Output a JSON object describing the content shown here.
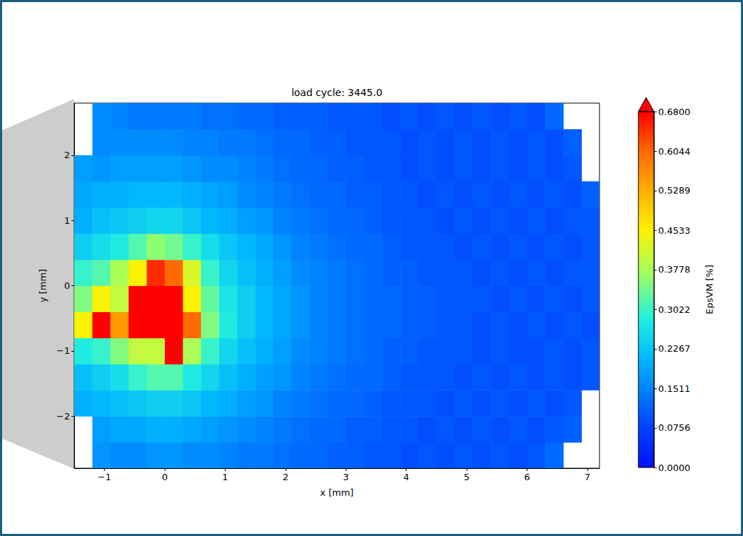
{
  "chart_data": {
    "type": "heatmap",
    "title": "load cycle: 3445.0",
    "x_label": "x [mm]",
    "y_label": "y [mm]",
    "xlim": [
      -1.5,
      7.2
    ],
    "ylim": [
      -2.8,
      2.8
    ],
    "xticks": [
      {
        "value": -1,
        "label": "−1"
      },
      0,
      1,
      2,
      3,
      4,
      5,
      6,
      7
    ],
    "yticks": [
      {
        "value": -2,
        "label": "−2"
      },
      {
        "value": -1,
        "label": "−1"
      },
      0,
      1,
      2
    ],
    "x": [
      -1.35,
      -1.05,
      -0.75,
      -0.45,
      -0.15,
      0.15,
      0.45,
      0.75,
      1.05,
      1.35,
      1.65,
      1.95,
      2.25,
      2.55,
      2.85,
      3.15,
      3.45,
      3.75,
      4.05,
      4.35,
      4.65,
      4.95,
      5.25,
      5.55,
      5.85,
      6.15,
      6.45,
      6.75,
      7.05
    ],
    "y": [
      -2.6,
      -2.2,
      -1.8,
      -1.4,
      -1.0,
      -0.6,
      -0.2,
      0.2,
      0.6,
      1.0,
      1.4,
      1.8,
      2.2,
      2.6
    ],
    "cells": [
      [
        null,
        0.17,
        0.16,
        0.16,
        0.17,
        0.17,
        0.16,
        0.16,
        0.15,
        0.14,
        0.14,
        0.13,
        0.12,
        0.12,
        0.11,
        0.11,
        0.1,
        0.1,
        0.09,
        0.1,
        0.09,
        0.1,
        0.09,
        0.1,
        0.09,
        0.1,
        0.12,
        null,
        null
      ],
      [
        null,
        0.18,
        0.19,
        0.19,
        0.2,
        0.2,
        0.19,
        0.18,
        0.17,
        0.16,
        0.15,
        0.14,
        0.13,
        0.12,
        0.12,
        0.11,
        0.11,
        0.1,
        0.1,
        0.09,
        0.1,
        0.09,
        0.1,
        0.09,
        0.1,
        0.09,
        0.1,
        0.11,
        null
      ],
      [
        0.2,
        0.21,
        0.22,
        0.23,
        0.24,
        0.24,
        0.23,
        0.21,
        0.2,
        0.18,
        0.17,
        0.15,
        0.14,
        0.13,
        0.12,
        0.12,
        0.11,
        0.1,
        0.1,
        0.1,
        0.09,
        0.1,
        0.09,
        0.1,
        0.09,
        0.1,
        0.09,
        0.1,
        null
      ],
      [
        0.22,
        0.24,
        0.26,
        0.3,
        0.32,
        0.32,
        0.28,
        0.25,
        0.22,
        0.2,
        0.18,
        0.17,
        0.15,
        0.14,
        0.13,
        0.12,
        0.12,
        0.11,
        0.1,
        0.1,
        0.1,
        0.09,
        0.1,
        0.09,
        0.1,
        0.09,
        0.1,
        0.09,
        0.1
      ],
      [
        0.28,
        0.3,
        0.35,
        0.4,
        0.4,
        0.8,
        0.38,
        0.3,
        0.25,
        0.22,
        0.2,
        0.18,
        0.16,
        0.15,
        0.14,
        0.13,
        0.12,
        0.11,
        0.11,
        0.1,
        0.1,
        0.1,
        0.09,
        0.1,
        0.09,
        0.09,
        0.1,
        0.09,
        0.1
      ],
      [
        0.45,
        0.75,
        0.55,
        0.85,
        0.9,
        0.85,
        0.6,
        0.35,
        0.28,
        0.24,
        0.21,
        0.19,
        0.17,
        0.15,
        0.14,
        0.13,
        0.12,
        0.12,
        0.11,
        0.11,
        0.1,
        0.1,
        0.09,
        0.1,
        0.09,
        0.1,
        0.09,
        0.1,
        0.09
      ],
      [
        0.35,
        0.45,
        0.4,
        0.75,
        0.9,
        0.8,
        0.45,
        0.33,
        0.27,
        0.24,
        0.21,
        0.19,
        0.17,
        0.15,
        0.14,
        0.13,
        0.12,
        0.12,
        0.11,
        0.11,
        0.1,
        0.1,
        0.1,
        0.09,
        0.1,
        0.09,
        0.1,
        0.09,
        0.1
      ],
      [
        0.3,
        0.32,
        0.38,
        0.45,
        0.65,
        0.6,
        0.42,
        0.3,
        0.25,
        0.22,
        0.2,
        0.18,
        0.16,
        0.15,
        0.14,
        0.13,
        0.12,
        0.11,
        0.11,
        0.1,
        0.1,
        0.1,
        0.09,
        0.1,
        0.09,
        0.1,
        0.09,
        0.1,
        0.1
      ],
      [
        0.24,
        0.26,
        0.28,
        0.32,
        0.36,
        0.34,
        0.3,
        0.26,
        0.23,
        0.21,
        0.19,
        0.17,
        0.15,
        0.14,
        0.13,
        0.12,
        0.12,
        0.11,
        0.1,
        0.1,
        0.1,
        0.09,
        0.1,
        0.09,
        0.1,
        0.09,
        0.1,
        0.09,
        0.1
      ],
      [
        0.2,
        0.22,
        0.23,
        0.24,
        0.25,
        0.25,
        0.23,
        0.21,
        0.2,
        0.18,
        0.17,
        0.15,
        0.14,
        0.13,
        0.12,
        0.12,
        0.11,
        0.1,
        0.1,
        0.1,
        0.09,
        0.1,
        0.09,
        0.1,
        0.09,
        0.1,
        0.09,
        0.1,
        0.1
      ],
      [
        0.19,
        0.2,
        0.2,
        0.21,
        0.21,
        0.21,
        0.2,
        0.19,
        0.18,
        0.16,
        0.15,
        0.14,
        0.13,
        0.12,
        0.12,
        0.11,
        0.11,
        0.1,
        0.1,
        0.09,
        0.1,
        0.09,
        0.1,
        0.09,
        0.1,
        0.09,
        0.1,
        0.09,
        0.11
      ],
      [
        0.18,
        0.17,
        0.18,
        0.18,
        0.18,
        0.18,
        0.17,
        0.16,
        0.16,
        0.15,
        0.14,
        0.13,
        0.12,
        0.12,
        0.11,
        0.11,
        0.1,
        0.1,
        0.09,
        0.1,
        0.09,
        0.1,
        0.09,
        0.1,
        0.09,
        0.1,
        0.09,
        0.1,
        null
      ],
      [
        null,
        0.16,
        0.16,
        0.16,
        0.16,
        0.16,
        0.15,
        0.15,
        0.14,
        0.14,
        0.13,
        0.12,
        0.12,
        0.11,
        0.11,
        0.1,
        0.1,
        0.1,
        0.09,
        0.1,
        0.09,
        0.1,
        0.09,
        0.1,
        0.09,
        0.1,
        0.09,
        0.11,
        null
      ],
      [
        null,
        0.16,
        0.15,
        0.14,
        0.14,
        0.14,
        0.14,
        0.13,
        0.13,
        0.12,
        0.12,
        0.11,
        0.11,
        0.11,
        0.1,
        0.1,
        0.1,
        0.09,
        0.1,
        0.09,
        0.1,
        0.09,
        0.1,
        0.09,
        0.1,
        0.09,
        0.12,
        null,
        null
      ]
    ],
    "colorbar": {
      "label": "EpsVM [%]",
      "range": [
        0,
        0.68
      ],
      "ticks": [
        {
          "value": 0,
          "label": "0.0000"
        },
        0.0756,
        0.1511,
        0.2267,
        0.3022,
        0.3778,
        0.4533,
        0.5289,
        0.6044,
        {
          "value": 0.68,
          "label": "0.6800"
        }
      ]
    }
  }
}
